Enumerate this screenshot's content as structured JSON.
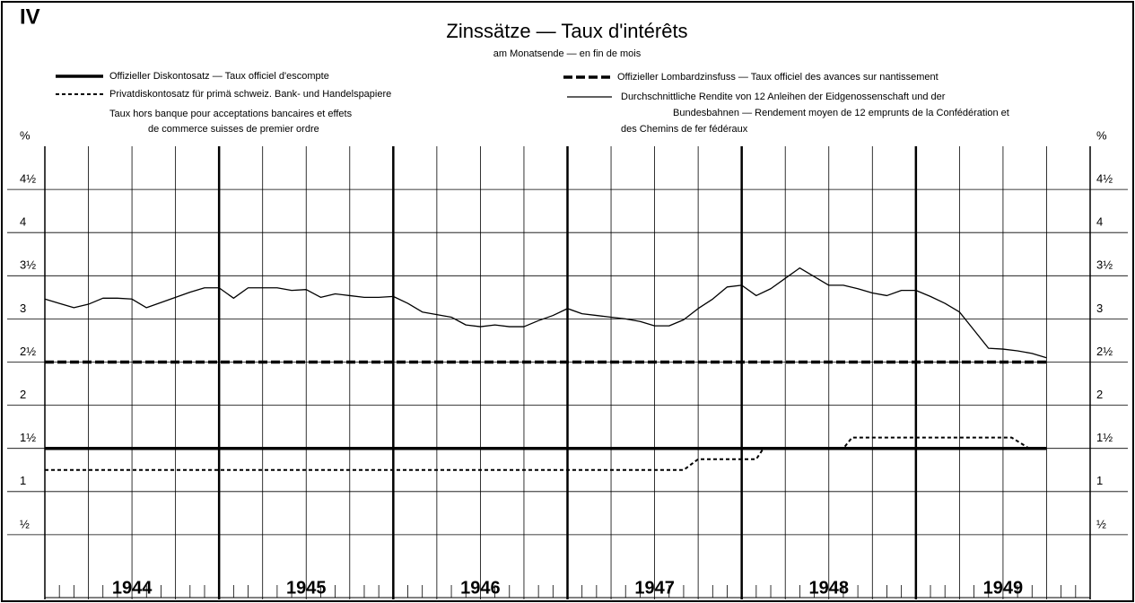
{
  "chart_data": {
    "type": "line",
    "label": "IV",
    "title": "Zinssätze — Taux d'intérêts",
    "subtitle": "am Monatsende — en fin de mois",
    "xlim": [
      0,
      72
    ],
    "xticks": [
      {
        "value": 6,
        "label": "1944"
      },
      {
        "value": 18,
        "label": "1945"
      },
      {
        "value": 30,
        "label": "1946"
      },
      {
        "value": 42,
        "label": "1947"
      },
      {
        "value": 54,
        "label": "1948"
      },
      {
        "value": 66,
        "label": "1949"
      }
    ],
    "ylim": [
      0,
      5
    ],
    "yticks": [
      {
        "value": 0.5,
        "label": "½"
      },
      1,
      {
        "value": 1.5,
        "label": "1½"
      },
      2,
      {
        "value": 2.5,
        "label": "2½"
      },
      3,
      {
        "value": 3.5,
        "label": "3½"
      },
      4,
      {
        "value": 4.5,
        "label": "4½"
      },
      {
        "value": 5,
        "label": "%"
      }
    ],
    "grid": true,
    "series": [
      {
        "name": "Offizieller Diskontosatz — Taux officiel d'escompte",
        "color": "#000",
        "style": "solid-thick",
        "x": [
          0,
          69
        ],
        "values": [
          1.5,
          1.5
        ]
      },
      {
        "name": "Privatdiskontosatz für primä schweiz. Bank- und Handelspapiere",
        "name_cont": [
          "Taux hors banque pour acceptations bancaires et effets",
          "de commerce suisses de premier ordre"
        ],
        "color": "#000",
        "style": "dotted",
        "x": [
          0,
          44,
          45,
          49,
          49.5,
          55,
          55.6,
          66.6,
          67.8,
          69
        ],
        "values": [
          1.25,
          1.25,
          1.375,
          1.375,
          1.5,
          1.5,
          1.625,
          1.625,
          1.5,
          1.5
        ]
      },
      {
        "name": "Offizieller Lombardzinsfuss — Taux officiel des avances sur nantissement",
        "color": "#000",
        "style": "dashed",
        "x": [
          0,
          69
        ],
        "values": [
          2.5,
          2.5
        ]
      },
      {
        "name": "Durchschnittliche Rendite von 12 Anleihen der Eidgenossenschaft und der",
        "name_cont": [
          "Bundesbahnen — Rendement moyen de 12 emprunts de la Confédération et",
          "des Chemins de fer fédéraux"
        ],
        "color": "#000",
        "style": "thin",
        "x": [
          0,
          1,
          2,
          3,
          4,
          5,
          6,
          7,
          8,
          9,
          10,
          11,
          12,
          13,
          14,
          15,
          16,
          17,
          18,
          19,
          20,
          21,
          22,
          23,
          24,
          25,
          26,
          27,
          28,
          29,
          30,
          31,
          32,
          33,
          34,
          35,
          36,
          37,
          38,
          39,
          40,
          41,
          42,
          43,
          44,
          45,
          46,
          47,
          48,
          49,
          50,
          51,
          52,
          53,
          54,
          55,
          56,
          57,
          58,
          59,
          60,
          61,
          62,
          63,
          64,
          65,
          66,
          67,
          68,
          69
        ],
        "values": [
          3.23,
          3.18,
          3.13,
          3.17,
          3.24,
          3.24,
          3.23,
          3.13,
          3.19,
          3.25,
          3.31,
          3.36,
          3.36,
          3.24,
          3.36,
          3.36,
          3.36,
          3.33,
          3.34,
          3.25,
          3.29,
          3.27,
          3.25,
          3.25,
          3.26,
          3.18,
          3.08,
          3.05,
          3.02,
          2.93,
          2.91,
          2.93,
          2.91,
          2.91,
          2.98,
          3.04,
          3.12,
          3.06,
          3.04,
          3.02,
          3.0,
          2.97,
          2.92,
          2.92,
          2.99,
          3.12,
          3.23,
          3.37,
          3.39,
          3.27,
          3.35,
          3.47,
          3.59,
          3.49,
          3.39,
          3.39,
          3.35,
          3.3,
          3.27,
          3.33,
          3.33,
          3.26,
          3.18,
          3.08,
          2.87,
          2.66,
          2.65,
          2.63,
          2.6,
          2.55
        ]
      }
    ]
  }
}
